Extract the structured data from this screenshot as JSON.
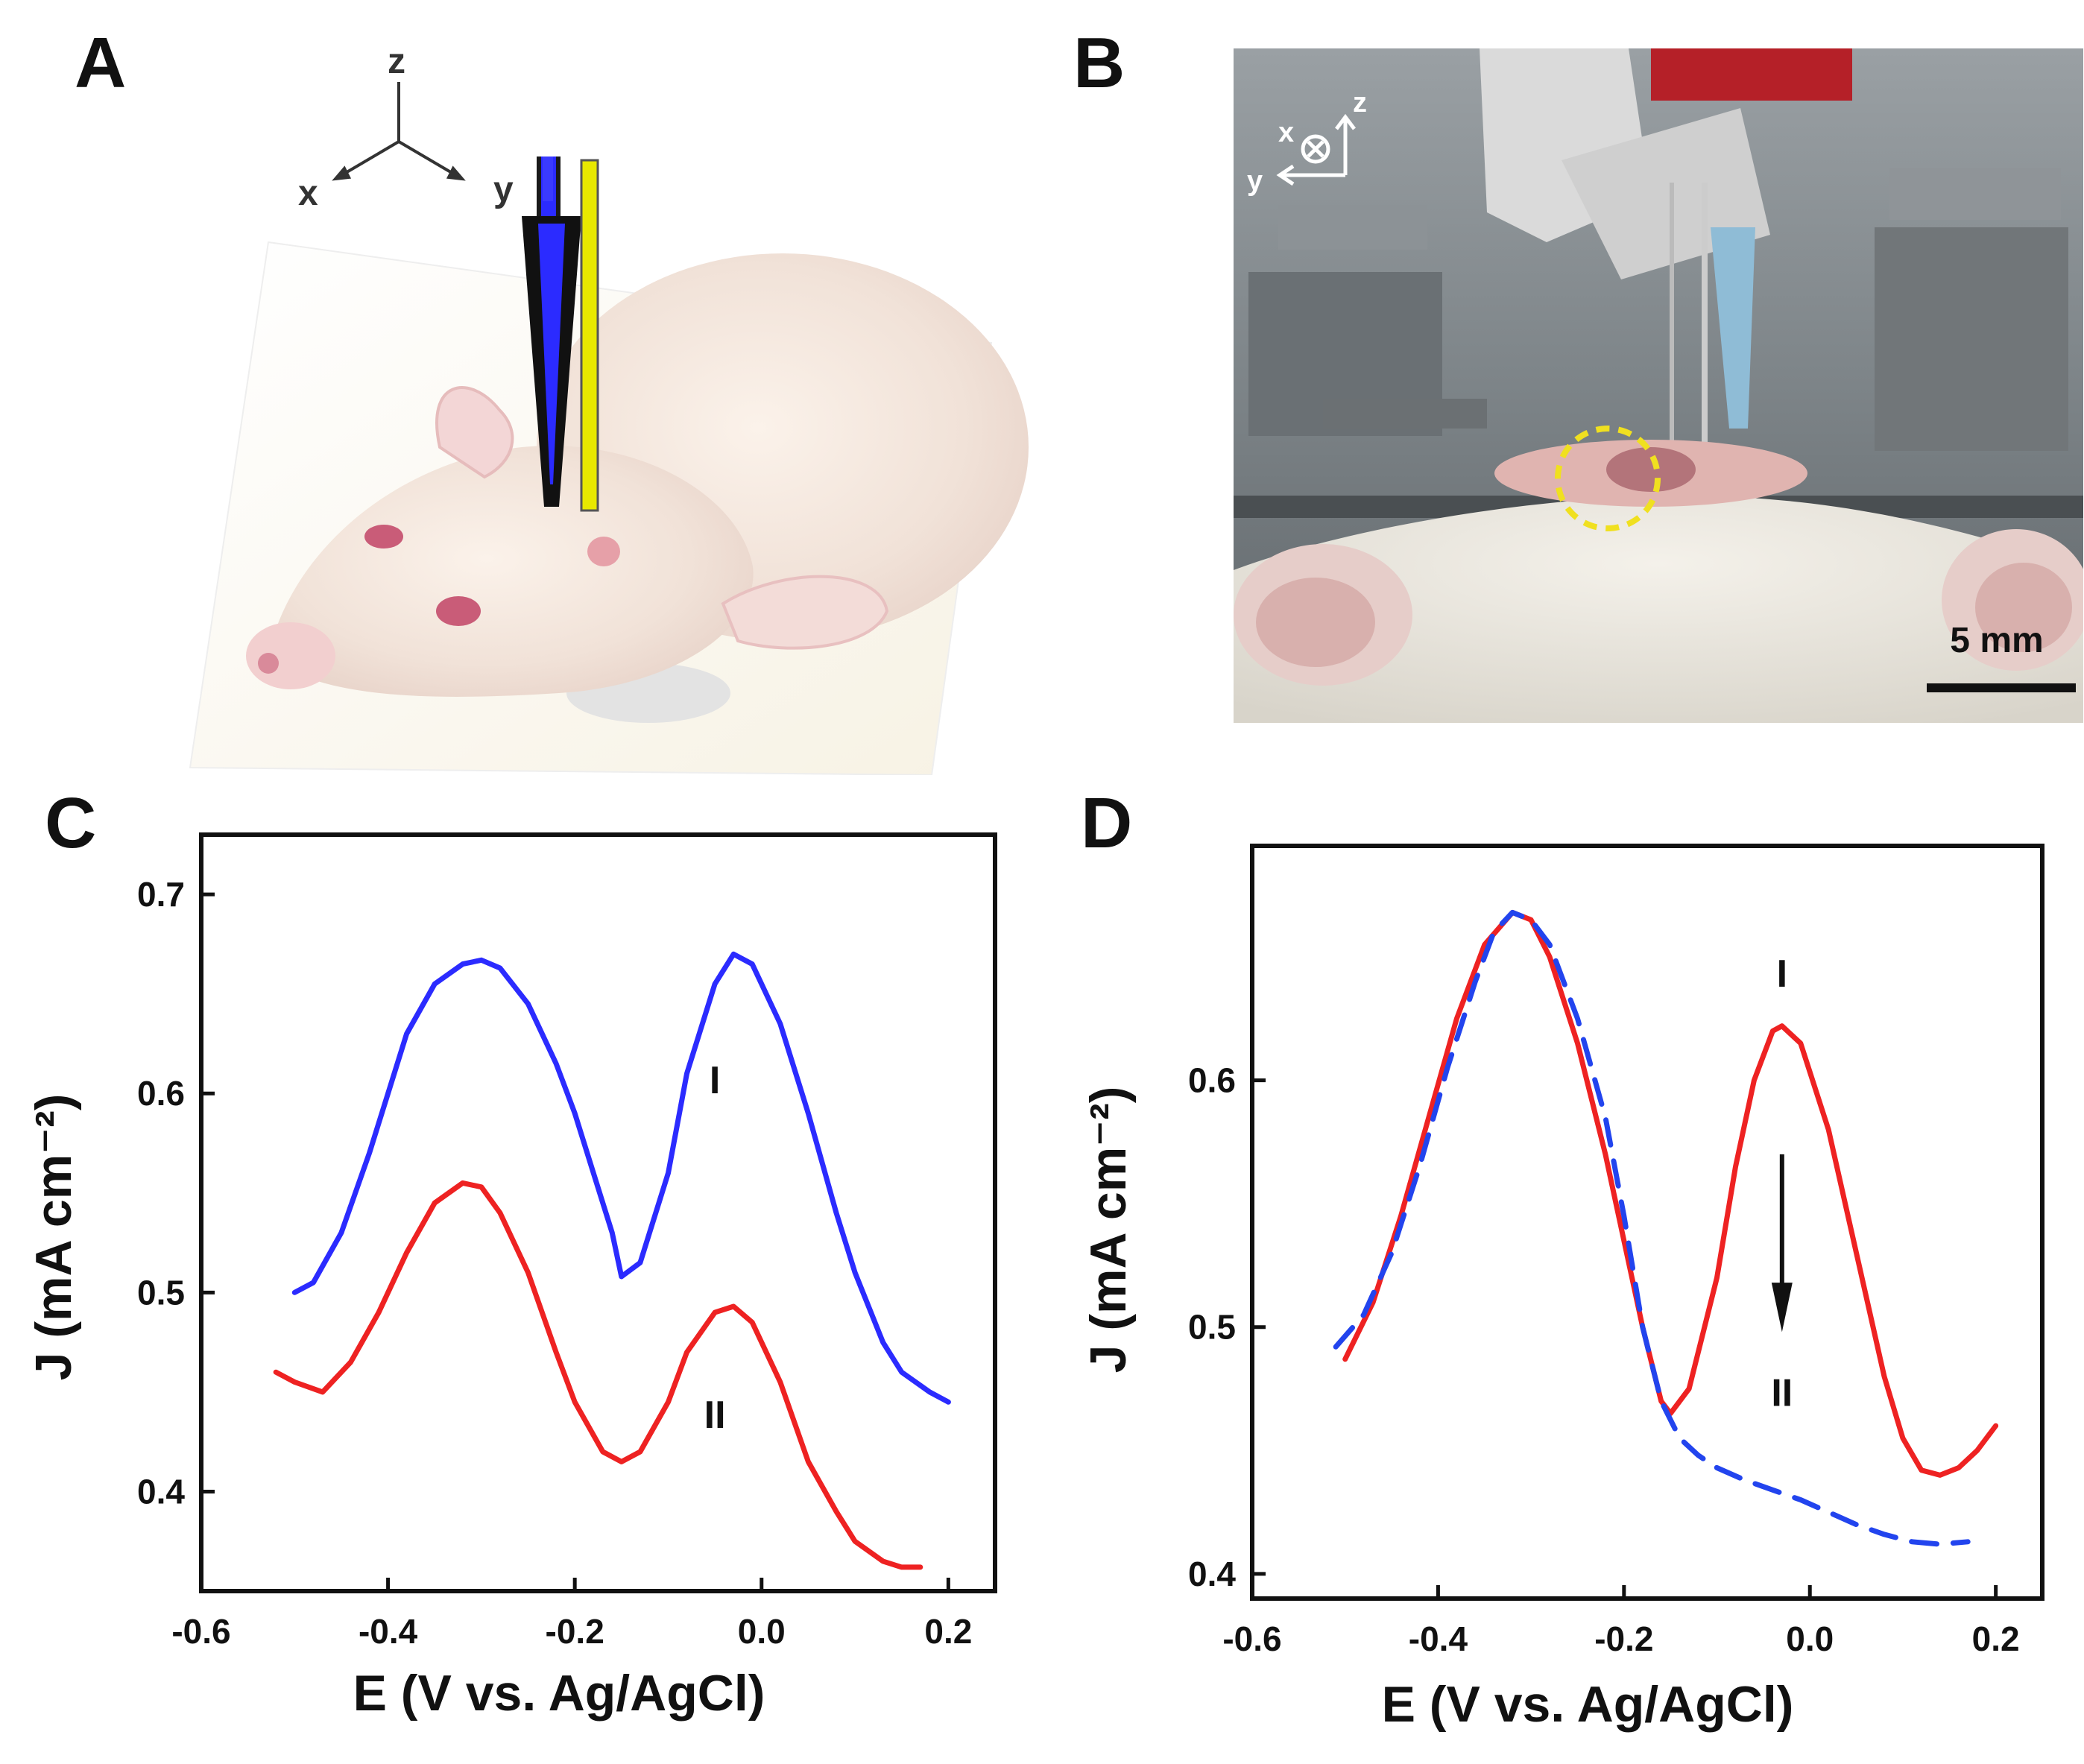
{
  "panels": {
    "a": {
      "letter": "A",
      "axes": {
        "z": "z",
        "x": "x",
        "y": "y"
      }
    },
    "b": {
      "letter": "B",
      "axes": {
        "x": "x",
        "y": "y",
        "z": "z"
      },
      "scale_bar": "5 mm"
    },
    "c": {
      "letter": "C"
    },
    "d": {
      "letter": "D"
    }
  },
  "colors": {
    "blue": "#2b2bff",
    "red": "#ee2222",
    "black": "#111111",
    "yellow": "#e8e800"
  },
  "icons": {
    "panel_a": "rat-with-electrode-illustration",
    "panel_b": "rat-experiment-photo"
  },
  "chart_data": [
    {
      "type": "line",
      "panel": "C",
      "xlabel": "E (V vs. Ag/AgCl)",
      "ylabel": "J (mA cm⁻²)",
      "xlim": [
        -0.6,
        0.25
      ],
      "ylim": [
        0.35,
        0.73
      ],
      "xticks": [
        -0.6,
        -0.4,
        -0.2,
        0.0,
        0.2
      ],
      "xtick_labels": [
        "-0.6",
        "-0.4",
        "-0.2",
        "0.0",
        "0.2"
      ],
      "yticks": [
        0.4,
        0.5,
        0.6,
        0.7
      ],
      "ytick_labels": [
        "0.4",
        "0.5",
        "0.6",
        "0.7"
      ],
      "grid": false,
      "series": [
        {
          "name": "I",
          "color": "#2b2bff",
          "dash": "solid",
          "x": [
            -0.5,
            -0.48,
            -0.45,
            -0.42,
            -0.4,
            -0.38,
            -0.35,
            -0.32,
            -0.3,
            -0.28,
            -0.25,
            -0.22,
            -0.2,
            -0.18,
            -0.16,
            -0.15,
            -0.13,
            -0.1,
            -0.08,
            -0.05,
            -0.03,
            -0.01,
            0.02,
            0.05,
            0.08,
            0.1,
            0.13,
            0.15,
            0.18,
            0.2
          ],
          "y": [
            0.5,
            0.505,
            0.53,
            0.57,
            0.6,
            0.63,
            0.655,
            0.665,
            0.667,
            0.663,
            0.645,
            0.615,
            0.59,
            0.56,
            0.53,
            0.508,
            0.515,
            0.56,
            0.61,
            0.655,
            0.67,
            0.665,
            0.635,
            0.59,
            0.54,
            0.51,
            0.475,
            0.46,
            0.45,
            0.445
          ]
        },
        {
          "name": "II",
          "color": "#ee2222",
          "dash": "solid",
          "x": [
            -0.52,
            -0.5,
            -0.47,
            -0.44,
            -0.41,
            -0.38,
            -0.35,
            -0.32,
            -0.3,
            -0.28,
            -0.25,
            -0.22,
            -0.2,
            -0.17,
            -0.15,
            -0.13,
            -0.1,
            -0.08,
            -0.05,
            -0.03,
            -0.01,
            0.02,
            0.05,
            0.08,
            0.1,
            0.13,
            0.15,
            0.17
          ],
          "y": [
            0.46,
            0.455,
            0.45,
            0.465,
            0.49,
            0.52,
            0.545,
            0.555,
            0.553,
            0.54,
            0.51,
            0.47,
            0.445,
            0.42,
            0.415,
            0.42,
            0.445,
            0.47,
            0.49,
            0.493,
            0.485,
            0.455,
            0.415,
            0.39,
            0.375,
            0.365,
            0.362,
            0.362
          ]
        }
      ],
      "annotations": [
        "I",
        "II"
      ]
    },
    {
      "type": "line",
      "panel": "D",
      "xlabel": "E (V vs. Ag/AgCl)",
      "ylabel": "J (mA cm⁻²)",
      "xlim": [
        -0.6,
        0.25
      ],
      "ylim": [
        0.39,
        0.695
      ],
      "xticks": [
        -0.6,
        -0.4,
        -0.2,
        0.0,
        0.2
      ],
      "xtick_labels": [
        "-0.6",
        "-0.4",
        "-0.2",
        "0.0",
        "0.2"
      ],
      "yticks": [
        0.4,
        0.5,
        0.6
      ],
      "ytick_labels": [
        "0.4",
        "0.5",
        "0.6"
      ],
      "grid": false,
      "series": [
        {
          "name": "I",
          "color": "#ee2222",
          "dash": "solid",
          "x": [
            -0.5,
            -0.47,
            -0.44,
            -0.41,
            -0.38,
            -0.35,
            -0.32,
            -0.3,
            -0.28,
            -0.25,
            -0.22,
            -0.2,
            -0.18,
            -0.16,
            -0.15,
            -0.13,
            -0.1,
            -0.08,
            -0.06,
            -0.04,
            -0.03,
            -0.01,
            0.02,
            0.05,
            0.08,
            0.1,
            0.12,
            0.14,
            0.16,
            0.18,
            0.2
          ],
          "y": [
            0.487,
            0.51,
            0.545,
            0.585,
            0.625,
            0.655,
            0.668,
            0.665,
            0.65,
            0.615,
            0.57,
            0.535,
            0.5,
            0.47,
            0.465,
            0.475,
            0.52,
            0.565,
            0.6,
            0.62,
            0.622,
            0.615,
            0.58,
            0.53,
            0.48,
            0.455,
            0.442,
            0.44,
            0.443,
            0.45,
            0.46
          ]
        },
        {
          "name": "II",
          "color": "#2244ee",
          "dash": "dashed",
          "x": [
            -0.51,
            -0.48,
            -0.45,
            -0.42,
            -0.39,
            -0.36,
            -0.34,
            -0.32,
            -0.3,
            -0.28,
            -0.25,
            -0.22,
            -0.2,
            -0.18,
            -0.16,
            -0.14,
            -0.12,
            -0.1,
            -0.07,
            -0.04,
            -0.01,
            0.02,
            0.05,
            0.08,
            0.11,
            0.14,
            0.17
          ],
          "y": [
            0.492,
            0.505,
            0.53,
            0.565,
            0.605,
            0.64,
            0.66,
            0.668,
            0.665,
            0.655,
            0.625,
            0.585,
            0.545,
            0.5,
            0.47,
            0.455,
            0.448,
            0.443,
            0.438,
            0.434,
            0.43,
            0.425,
            0.42,
            0.416,
            0.413,
            0.412,
            0.413
          ]
        }
      ],
      "annotations": [
        "I",
        "II"
      ]
    }
  ]
}
